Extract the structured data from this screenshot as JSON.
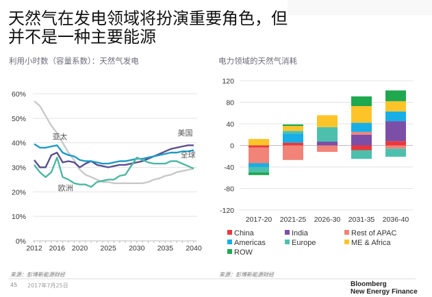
{
  "slide": {
    "title": "天然气在发电领域将扮演重要角色，但并不是一种主要能源",
    "page_number": "45",
    "date": "2017年7月25日",
    "brand_line1": "Bloomberg",
    "brand_line2": "New Energy Finance",
    "source_left": "来源：彭博新能源财经",
    "source_right": "来源：彭博新能源财经"
  },
  "chart_data": [
    {
      "type": "line",
      "title": "利用小时数（容量系数）：天然气发电",
      "xlabel": "",
      "ylabel": "",
      "x": [
        2012,
        2013,
        2014,
        2015,
        2016,
        2017,
        2018,
        2019,
        2020,
        2021,
        2022,
        2023,
        2024,
        2025,
        2026,
        2027,
        2028,
        2029,
        2030,
        2031,
        2032,
        2033,
        2034,
        2035,
        2036,
        2037,
        2038,
        2039,
        2040
      ],
      "xticks": [
        "2012",
        "2016",
        "2020",
        "2025",
        "2030",
        "2035",
        "2040"
      ],
      "yticks": [
        "0%",
        "10%",
        "20%",
        "30%",
        "40%",
        "50%",
        "60%"
      ],
      "ylim": [
        0,
        60
      ],
      "grid": true,
      "series": [
        {
          "name": "亚太",
          "color": "#c8c8c8",
          "values": [
            57,
            55,
            51,
            47,
            44,
            40,
            36,
            33,
            29,
            27,
            26,
            25,
            24,
            24,
            23.5,
            23.5,
            23.5,
            23.5,
            23.5,
            23.5,
            24,
            25,
            25.5,
            26.5,
            27,
            28,
            28.5,
            29,
            29.5
          ]
        },
        {
          "name": "美国",
          "color": "#5a4e8c",
          "values": [
            33,
            30,
            30,
            35,
            36,
            32,
            32.5,
            32,
            30,
            31.5,
            32.5,
            31,
            30.5,
            30,
            30.5,
            31,
            31,
            31.5,
            32,
            32.5,
            33.5,
            34.5,
            35.5,
            36.5,
            37.5,
            38,
            38.5,
            39,
            39
          ]
        },
        {
          "name": "全球",
          "color": "#1b9ac4",
          "values": [
            39.5,
            38,
            38,
            38.5,
            39,
            36,
            35,
            34.5,
            33,
            32.5,
            32.5,
            32,
            31.5,
            31.5,
            32,
            32.5,
            32.5,
            33,
            33.5,
            33.5,
            34,
            34.5,
            35,
            35.5,
            36,
            36,
            36.5,
            36.5,
            37
          ]
        },
        {
          "name": "欧洲",
          "color": "#4db6a3",
          "values": [
            31,
            28,
            26,
            28,
            34,
            26,
            25,
            23.5,
            23,
            23,
            22,
            24,
            24.5,
            25,
            25,
            26.5,
            27,
            30.5,
            34,
            33,
            32,
            31.5,
            31.5,
            31.5,
            32.5,
            32.5,
            31.5,
            30.5,
            29.5
          ]
        }
      ],
      "annotations": [
        {
          "text": "亚太",
          "x": 2016.5,
          "y": 41.5
        },
        {
          "text": "美国",
          "x": 2038.5,
          "y": 43
        },
        {
          "text": "全球",
          "x": 2039,
          "y": 34
        },
        {
          "text": "欧洲",
          "x": 2017.5,
          "y": 20.5
        }
      ]
    },
    {
      "type": "bar",
      "stacked": true,
      "title": "电力领域的天然气消耗",
      "categories": [
        "2017-20",
        "2021-25",
        "2026-30",
        "2031-35",
        "2036-40"
      ],
      "yticks": [
        "120",
        "80",
        "40",
        "0",
        "-40",
        "-80",
        "-120"
      ],
      "ylim": [
        -120,
        120
      ],
      "grid": true,
      "legend_position": "bottom",
      "series": [
        {
          "name": "China",
          "color": "#e8383d",
          "values": [
            -4,
            5,
            0,
            -9,
            8
          ]
        },
        {
          "name": "India",
          "color": "#7b4fa8",
          "values": [
            0,
            0,
            7,
            20,
            37
          ]
        },
        {
          "name": "Rest of APAC",
          "color": "#f28379",
          "values": [
            -29,
            -27,
            -12,
            5,
            -6
          ]
        },
        {
          "name": "Americas",
          "color": "#18aee6",
          "values": [
            -7,
            17,
            0,
            17,
            18
          ]
        },
        {
          "name": "Europe",
          "color": "#4cc0ad",
          "values": [
            -10,
            5,
            27,
            -16,
            -15
          ]
        },
        {
          "name": "ME & Africa",
          "color": "#fdc42a",
          "values": [
            12,
            9,
            22,
            31,
            19
          ]
        },
        {
          "name": "ROW",
          "color": "#1fa84f",
          "values": [
            -5,
            3,
            0,
            18,
            20
          ]
        }
      ]
    }
  ]
}
